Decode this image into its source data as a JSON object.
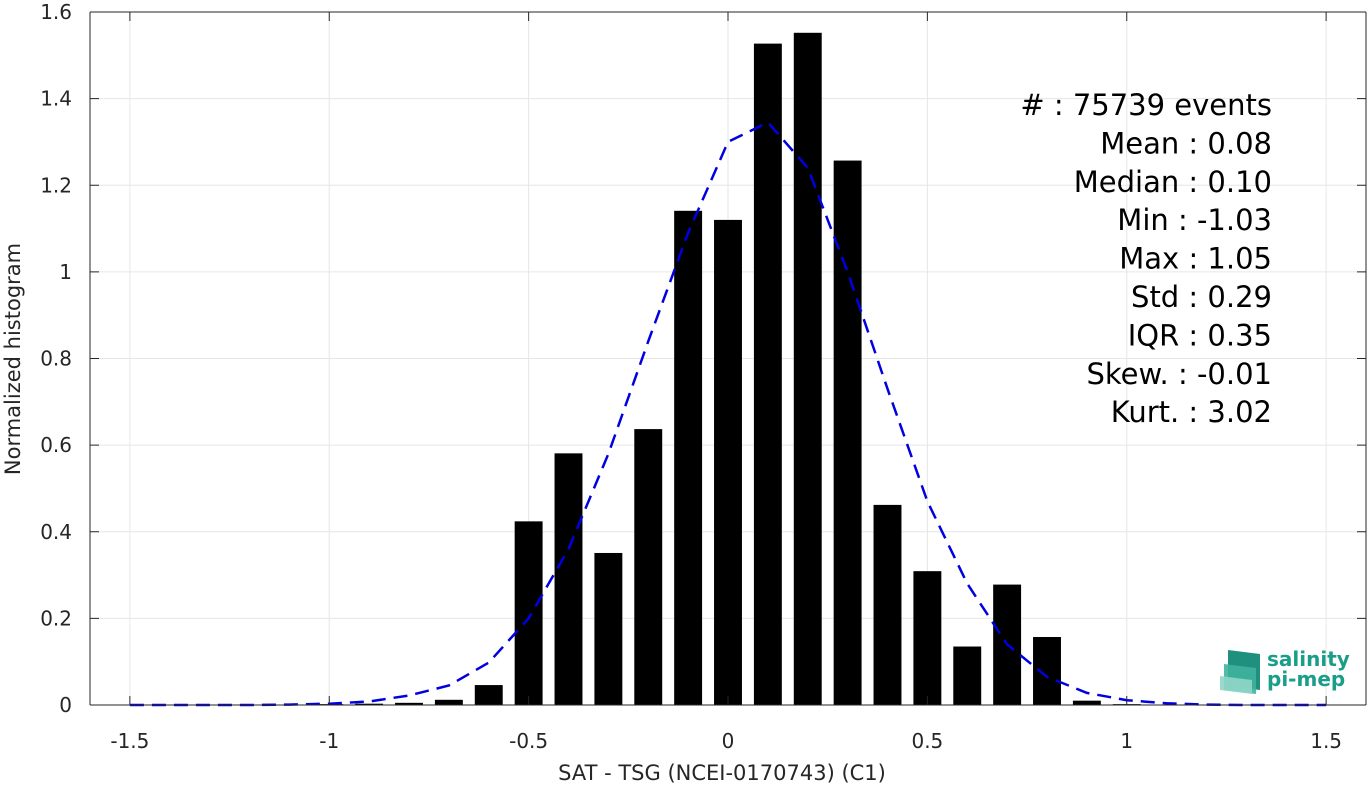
{
  "chart_data": {
    "type": "bar",
    "title": "",
    "xlabel": "SAT - TSG (NCEI-0170743) (C1)",
    "ylabel": "Normalized histogram",
    "xlim": [
      -1.6,
      1.6
    ],
    "ylim": [
      0,
      1.6
    ],
    "grid": true,
    "x_ticks": [
      -1.5,
      -1,
      -0.5,
      0,
      0.5,
      1,
      1.5
    ],
    "x_tick_labels": [
      "-1.5",
      "-1",
      "-0.5",
      "0",
      "0.5",
      "1",
      "1.5"
    ],
    "y_ticks": [
      0,
      0.2,
      0.4,
      0.6,
      0.8,
      1,
      1.2,
      1.4,
      1.6
    ],
    "y_tick_labels": [
      "0",
      "0.2",
      "0.4",
      "0.6",
      "0.8",
      "1",
      "1.2",
      "1.4",
      "1.6"
    ],
    "bar_width": 0.07,
    "bar_color": "#000000",
    "bars": {
      "x": [
        -1.0,
        -0.9,
        -0.8,
        -0.7,
        -0.6,
        -0.5,
        -0.4,
        -0.3,
        -0.2,
        -0.1,
        0.0,
        0.1,
        0.2,
        0.3,
        0.4,
        0.5,
        0.6,
        0.7,
        0.8,
        0.9,
        1.0
      ],
      "y": [
        0.002,
        0.003,
        0.005,
        0.012,
        0.046,
        0.424,
        0.581,
        0.351,
        0.637,
        1.141,
        1.12,
        1.527,
        1.552,
        1.257,
        0.462,
        0.309,
        0.135,
        0.278,
        0.157,
        0.01,
        0.002
      ]
    },
    "fit_curve": {
      "style": "dashed",
      "color": "#0000e0",
      "x": [
        -1.5,
        -1.4,
        -1.3,
        -1.2,
        -1.1,
        -1.0,
        -0.9,
        -0.8,
        -0.7,
        -0.6,
        -0.5,
        -0.4,
        -0.3,
        -0.2,
        -0.1,
        0.0,
        0.1,
        0.2,
        0.3,
        0.4,
        0.5,
        0.6,
        0.7,
        0.8,
        0.9,
        1.0,
        1.1,
        1.2,
        1.3,
        1.4,
        1.5
      ],
      "y": [
        0,
        0,
        0,
        0,
        0.001,
        0.003,
        0.008,
        0.022,
        0.045,
        0.098,
        0.2,
        0.36,
        0.58,
        0.84,
        1.09,
        1.3,
        1.345,
        1.24,
        1.0,
        0.73,
        0.47,
        0.28,
        0.14,
        0.065,
        0.028,
        0.011,
        0.004,
        0.001,
        0,
        0,
        0
      ]
    },
    "stats_placement": "top-right",
    "stats": [
      "#  : 75739 events",
      "Mean : 0.08",
      "Median : 0.10",
      "Min : -1.03",
      "Max : 1.05",
      "Std : 0.29",
      "IQR : 0.35",
      "Skew. : -0.01",
      "Kurt. : 3.02"
    ]
  },
  "logo": {
    "line1": "salinity",
    "line2": "pi-mep",
    "color": "#1a9e8a"
  }
}
